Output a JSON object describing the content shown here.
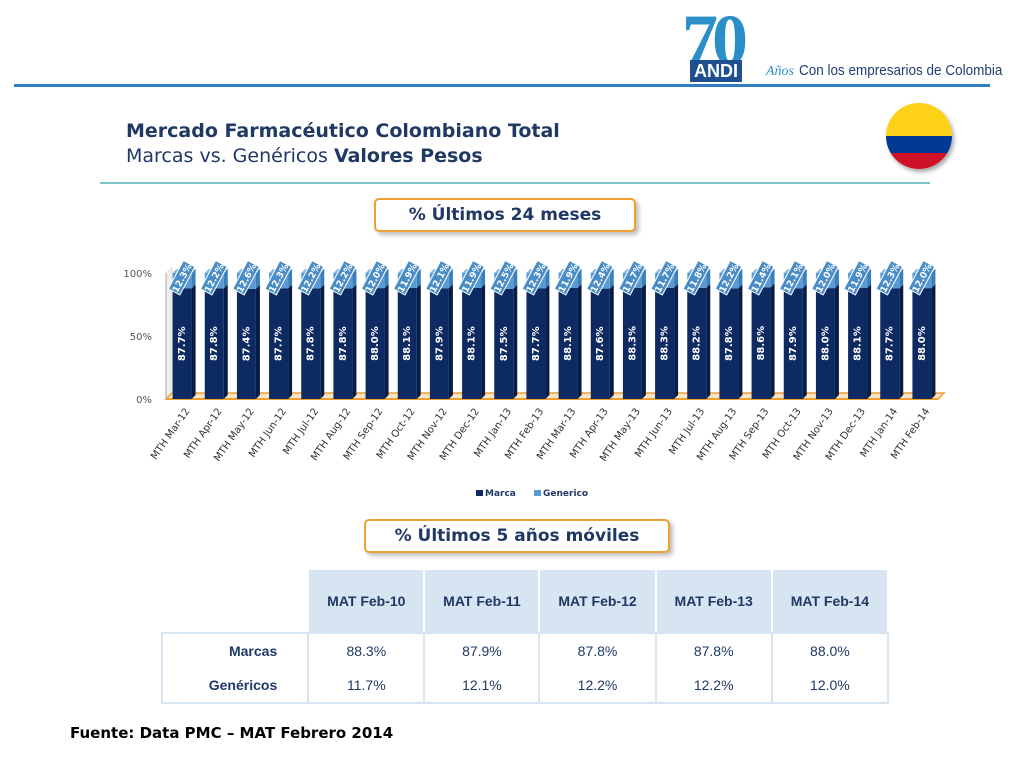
{
  "logo": {
    "number": "70",
    "org": "ANDI",
    "years_word": "Años",
    "tagline": "Con los empresarios de Colombia"
  },
  "header": {
    "title": "Mercado Farmacéutico Colombiano Total",
    "subtitle_plain": "Marcas vs. Genéricos",
    "subtitle_bold": "Valores Pesos"
  },
  "flag": {
    "colors": [
      "#fcd116",
      "#003893",
      "#ce1126"
    ]
  },
  "callouts": {
    "chart": "% Últimos 24 meses",
    "table": "% Últimos 5 años móviles"
  },
  "chart_data": {
    "type": "bar",
    "stacked": true,
    "ylim": [
      0,
      100
    ],
    "yticks": [
      "0%",
      "50%",
      "100%"
    ],
    "legend_position": "bottom",
    "categories": [
      "MTH Mar-12",
      "MTH Apr-12",
      "MTH May-12",
      "MTH Jun-12",
      "MTH Jul-12",
      "MTH Aug-12",
      "MTH Sep-12",
      "MTH Oct-12",
      "MTH Nov-12",
      "MTH Dec-12",
      "MTH Jan-13",
      "MTH Feb-13",
      "MTH Mar-13",
      "MTH Apr-13",
      "MTH May-13",
      "MTH Jun-13",
      "MTH Jul-13",
      "MTH Aug-13",
      "MTH Sep-13",
      "MTH Oct-13",
      "MTH Nov-13",
      "MTH Dec-13",
      "MTH Jan-14",
      "MTH Feb-14"
    ],
    "series": [
      {
        "name": "Marca",
        "color": "#0d2a62",
        "values": [
          87.7,
          87.8,
          87.4,
          87.7,
          87.8,
          87.8,
          88.0,
          88.1,
          87.9,
          88.1,
          87.5,
          87.7,
          88.1,
          87.6,
          88.3,
          88.3,
          88.2,
          87.8,
          88.6,
          87.9,
          88.0,
          88.1,
          87.7,
          88.0
        ],
        "labels": [
          "87.7%",
          "87.8%",
          "87.4%",
          "87.7%",
          "87.8%",
          "87.8%",
          "88.0%",
          "88.1%",
          "87.9%",
          "88.1%",
          "87.5%",
          "87.7%",
          "88.1%",
          "87.6%",
          "88.3%",
          "88.3%",
          "88.2%",
          "87.8%",
          "88.6%",
          "87.9%",
          "88.0%",
          "88.1%",
          "87.7%",
          "88.0%"
        ]
      },
      {
        "name": "Generico",
        "color": "#5b9bd5",
        "values": [
          12.3,
          12.2,
          12.6,
          12.3,
          12.2,
          12.2,
          12.0,
          11.9,
          12.1,
          11.9,
          12.5,
          12.3,
          11.9,
          12.4,
          11.7,
          11.7,
          11.8,
          12.2,
          11.4,
          12.1,
          12.0,
          11.9,
          12.3,
          12.0
        ],
        "labels": [
          "12.3%",
          "12.2%",
          "12.6%",
          "12.3%",
          "12.2%",
          "12.2%",
          "12.0%",
          "11.9%",
          "12.1%",
          "11.9%",
          "12.5%",
          "12.3%",
          "11.9%",
          "12.4%",
          "11.7%",
          "11.7%",
          "11.8%",
          "12.2%",
          "11.4%",
          "12.1%",
          "12.0%",
          "11.9%",
          "12.3%",
          "12.0%"
        ]
      }
    ]
  },
  "table": {
    "headers": [
      "MAT Feb-10",
      "MAT Feb-11",
      "MAT Feb-12",
      "MAT Feb-13",
      "MAT Feb-14"
    ],
    "rows": [
      {
        "label": "Marcas",
        "values": [
          "88.3%",
          "87.9%",
          "87.8%",
          "87.8%",
          "88.0%"
        ]
      },
      {
        "label": "Genéricos",
        "values": [
          "11.7%",
          "12.1%",
          "12.2%",
          "12.2%",
          "12.0%"
        ]
      }
    ]
  },
  "source": "Fuente: Data PMC – MAT Febrero 2014"
}
